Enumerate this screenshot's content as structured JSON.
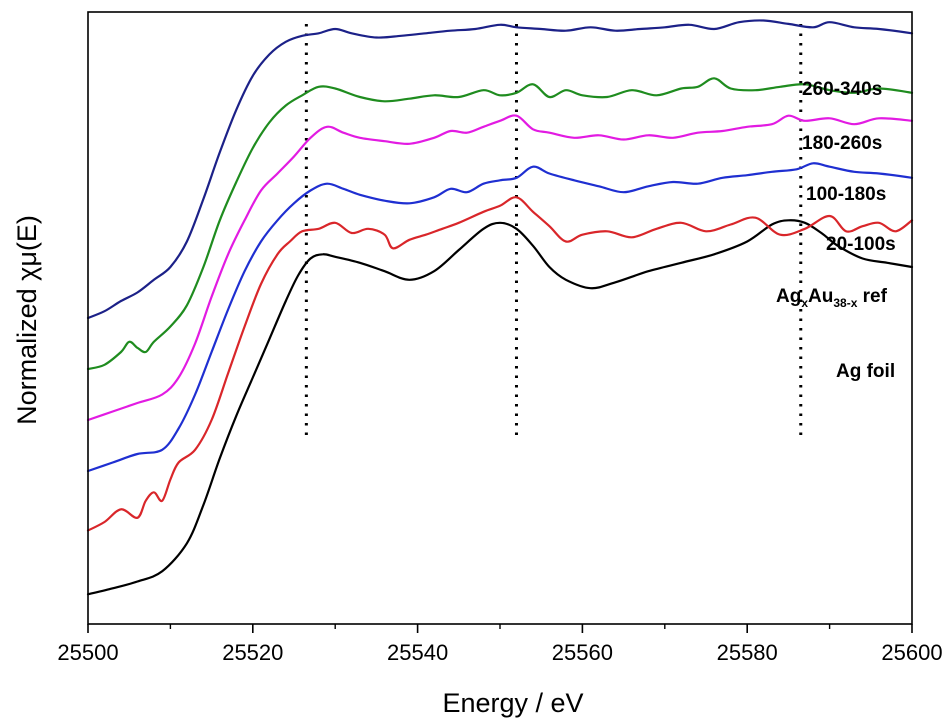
{
  "chart_data": {
    "type": "line",
    "xlabel": "Energy / eV",
    "ylabel": "Normalized χμ(E)",
    "xlim": [
      25500,
      25600
    ],
    "ylim": [
      0,
      7.2
    ],
    "xticks": [
      25500,
      25520,
      25540,
      25560,
      25580,
      25600
    ],
    "xtick_labels": [
      "25500",
      "25520",
      "25540",
      "25560",
      "25580",
      "25600"
    ],
    "yticks_shown": false,
    "grid": false,
    "reference_lines_x": [
      25526.5,
      25552,
      25586.5
    ],
    "series": [
      {
        "name": "Ag foil",
        "color": "#000000",
        "x": [
          25500,
          25503,
          25506,
          25509,
          25512,
          25514,
          25516,
          25518,
          25520,
          25522,
          25524,
          25525.5,
          25527,
          25528.5,
          25530,
          25533,
          25536,
          25539,
          25542,
          25545,
          25548,
          25550,
          25552,
          25554,
          25556,
          25558,
          25561,
          25564,
          25568,
          25572,
          25576,
          25580,
          25583,
          25585,
          25587,
          25589,
          25591,
          25594,
          25597,
          25600
        ],
        "values": [
          0.35,
          0.42,
          0.5,
          0.62,
          0.95,
          1.4,
          1.95,
          2.45,
          2.9,
          3.35,
          3.8,
          4.1,
          4.3,
          4.35,
          4.32,
          4.25,
          4.15,
          4.05,
          4.15,
          4.4,
          4.65,
          4.72,
          4.65,
          4.45,
          4.2,
          4.05,
          3.95,
          4.02,
          4.15,
          4.25,
          4.35,
          4.5,
          4.7,
          4.75,
          4.72,
          4.6,
          4.45,
          4.3,
          4.25,
          4.2
        ]
      },
      {
        "name": "AgxAu38-x ref",
        "color": "#d9262a",
        "x": [
          25500,
          25502,
          25504,
          25506,
          25507,
          25508,
          25509,
          25510,
          25511,
          25513,
          25515,
          25517,
          25519,
          25521,
          25523,
          25524.5,
          25526,
          25528,
          25530,
          25532,
          25534,
          25536,
          25537,
          25539,
          25541,
          25543,
          25545,
          25548,
          25550,
          25552,
          25554,
          25556,
          25558,
          25560,
          25563,
          25566,
          25569,
          25572,
          25575,
          25578,
          25581,
          25584,
          25587,
          25590,
          25592,
          25594,
          25596,
          25598,
          25600
        ],
        "values": [
          1.1,
          1.2,
          1.35,
          1.25,
          1.45,
          1.55,
          1.45,
          1.7,
          1.9,
          2.05,
          2.4,
          2.95,
          3.5,
          4.0,
          4.35,
          4.5,
          4.62,
          4.65,
          4.72,
          4.6,
          4.65,
          4.58,
          4.42,
          4.52,
          4.58,
          4.65,
          4.72,
          4.85,
          4.92,
          5.02,
          4.85,
          4.68,
          4.5,
          4.58,
          4.62,
          4.55,
          4.65,
          4.72,
          4.62,
          4.7,
          4.78,
          4.58,
          4.65,
          4.8,
          4.62,
          4.68,
          4.72,
          4.62,
          4.75
        ]
      },
      {
        "name": "20-100s",
        "color": "#1f2fd1",
        "x": [
          25500,
          25503,
          25506,
          25509,
          25511,
          25513,
          25515,
          25517,
          25519,
          25521,
          25523,
          25525,
          25527,
          25529,
          25531,
          25533,
          25536,
          25539,
          25542,
          25544,
          25546,
          25548,
          25550,
          25552,
          25554,
          25556,
          25559,
          25562,
          25565,
          25568,
          25571,
          25574,
          25577,
          25580,
          25583,
          25586,
          25588,
          25590,
          25593,
          25596,
          25600
        ],
        "values": [
          1.8,
          1.9,
          2.0,
          2.05,
          2.3,
          2.7,
          3.2,
          3.7,
          4.15,
          4.5,
          4.75,
          4.95,
          5.1,
          5.18,
          5.12,
          5.05,
          4.98,
          4.95,
          5.02,
          5.12,
          5.08,
          5.18,
          5.22,
          5.25,
          5.38,
          5.3,
          5.22,
          5.15,
          5.08,
          5.15,
          5.2,
          5.18,
          5.25,
          5.28,
          5.32,
          5.35,
          5.42,
          5.38,
          5.32,
          5.3,
          5.25
        ]
      },
      {
        "name": "100-180s",
        "color": "#e21be2",
        "x": [
          25500,
          25503,
          25506,
          25509,
          25511,
          25513,
          25515,
          25517,
          25519,
          25521,
          25523,
          25525,
          25527,
          25529,
          25531,
          25533,
          25536,
          25539,
          25542,
          25544,
          25546,
          25548,
          25550,
          25552,
          25554,
          25556,
          25559,
          25562,
          25565,
          25568,
          25571,
          25574,
          25577,
          25580,
          25583,
          25585,
          25587,
          25590,
          25593,
          25596,
          25600
        ],
        "values": [
          2.4,
          2.5,
          2.6,
          2.7,
          2.9,
          3.3,
          3.85,
          4.35,
          4.75,
          5.1,
          5.3,
          5.5,
          5.72,
          5.85,
          5.78,
          5.72,
          5.68,
          5.65,
          5.72,
          5.8,
          5.78,
          5.85,
          5.92,
          5.98,
          5.82,
          5.78,
          5.72,
          5.75,
          5.7,
          5.75,
          5.72,
          5.78,
          5.8,
          5.85,
          5.88,
          5.98,
          5.92,
          5.95,
          5.88,
          5.95,
          5.92
        ]
      },
      {
        "name": "180-260s",
        "color": "#1f8c1f",
        "x": [
          25500,
          25502,
          25504,
          25505,
          25506,
          25507,
          25508,
          25510,
          25512,
          25514,
          25516,
          25518,
          25520,
          25522,
          25524,
          25526,
          25528,
          25530,
          25533,
          25536,
          25539,
          25542,
          25545,
          25548,
          25550,
          25552,
          25554,
          25556,
          25558,
          25560,
          25563,
          25566,
          25569,
          25572,
          25574,
          25576,
          25578,
          25581,
          25584,
          25587,
          25590,
          25593,
          25596,
          25600
        ],
        "values": [
          3.0,
          3.05,
          3.2,
          3.32,
          3.25,
          3.2,
          3.32,
          3.5,
          3.75,
          4.2,
          4.75,
          5.2,
          5.6,
          5.9,
          6.1,
          6.22,
          6.32,
          6.3,
          6.2,
          6.15,
          6.18,
          6.22,
          6.2,
          6.28,
          6.22,
          6.25,
          6.35,
          6.2,
          6.28,
          6.22,
          6.2,
          6.28,
          6.22,
          6.3,
          6.32,
          6.42,
          6.3,
          6.28,
          6.32,
          6.35,
          6.28,
          6.25,
          6.3,
          6.25
        ]
      },
      {
        "name": "260-340s",
        "color": "#1c2188",
        "x": [
          25500,
          25502,
          25504,
          25506,
          25508,
          25510,
          25512,
          25514,
          25516,
          25518,
          25520,
          25522,
          25524,
          25526,
          25528,
          25530,
          25532,
          25535,
          25538,
          25541,
          25544,
          25547,
          25550,
          25552,
          25555,
          25558,
          25561,
          25564,
          25567,
          25570,
          25573,
          25576,
          25579,
          25582,
          25585,
          25588,
          25590,
          25593,
          25596,
          25600
        ],
        "values": [
          3.6,
          3.68,
          3.8,
          3.9,
          4.05,
          4.2,
          4.5,
          5.0,
          5.55,
          6.05,
          6.45,
          6.7,
          6.85,
          6.92,
          6.95,
          7.0,
          6.95,
          6.9,
          6.92,
          6.95,
          6.98,
          7.0,
          7.05,
          7.02,
          7.0,
          6.98,
          7.02,
          6.98,
          7.0,
          7.02,
          7.05,
          7.0,
          7.08,
          7.1,
          7.06,
          7.02,
          7.08,
          7.02,
          7.0,
          6.95
        ]
      }
    ],
    "series_labels": [
      {
        "text": "260-340s"
      },
      {
        "text": "180-260s"
      },
      {
        "text": "100-180s"
      },
      {
        "text": "20-100s"
      },
      {
        "main1": "Ag",
        "sub1": "x",
        "main2": "Au",
        "sub2": "38-x",
        "main3": " ref"
      },
      {
        "text": "Ag foil"
      }
    ]
  }
}
